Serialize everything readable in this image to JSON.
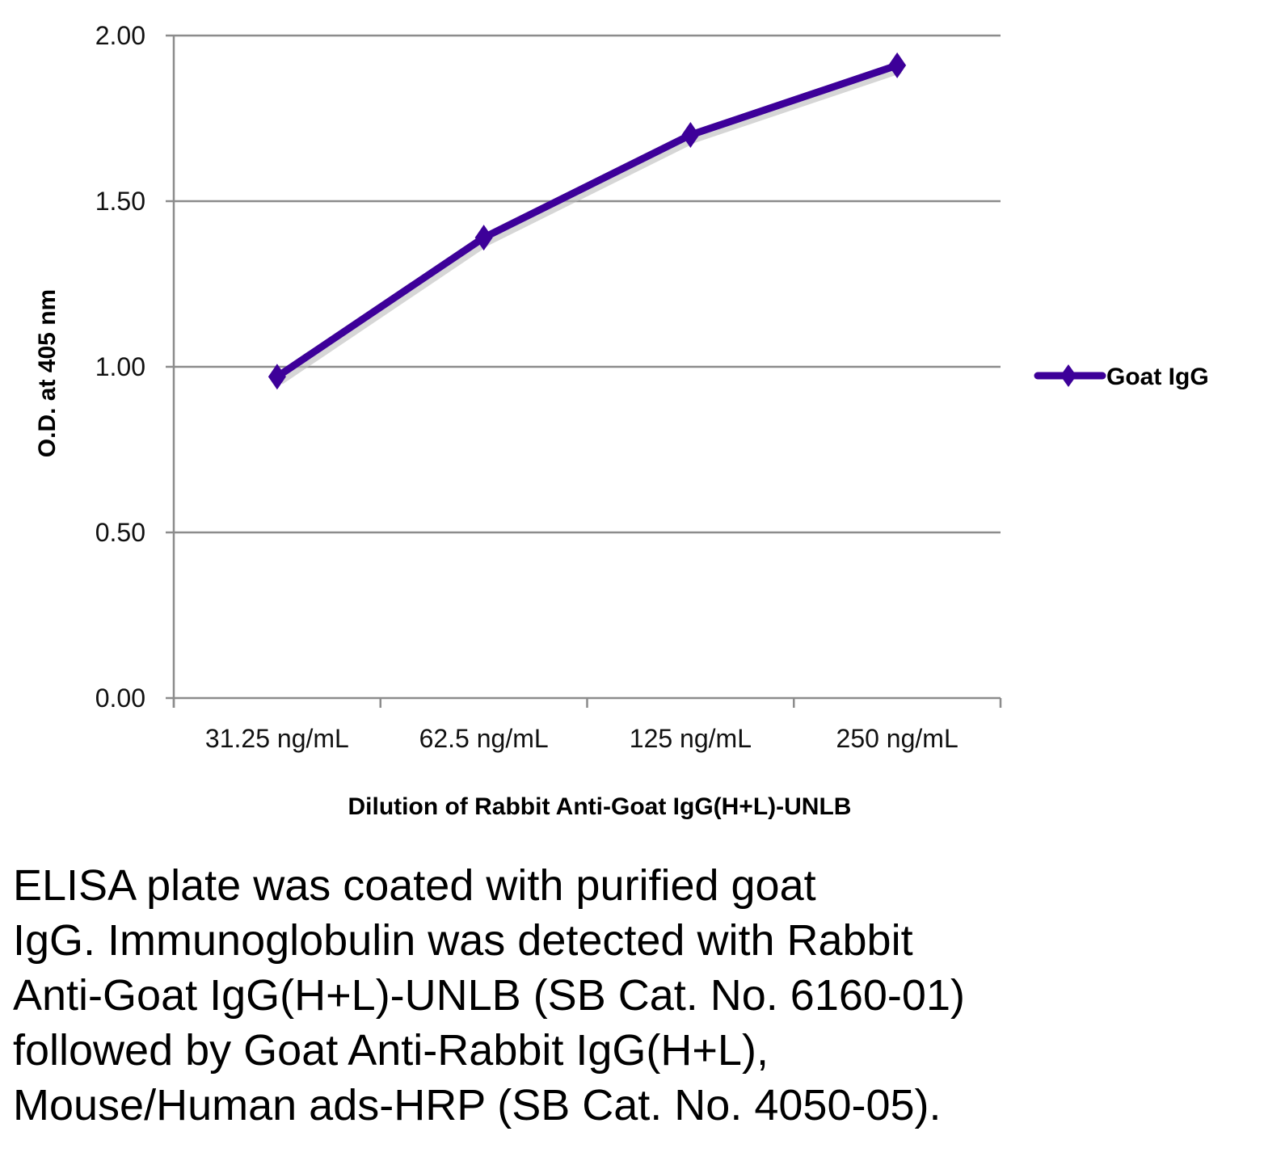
{
  "chart_data": {
    "type": "line",
    "title": "",
    "xlabel": "Dilution of Rabbit Anti-Goat IgG(H+L)-UNLB",
    "ylabel": "O.D. at 405 nm",
    "categories": [
      "31.25 ng/mL",
      "62.5 ng/mL",
      "125 ng/mL",
      "250 ng/mL"
    ],
    "series": [
      {
        "name": "Goat IgG",
        "values": [
          0.97,
          1.39,
          1.7,
          1.91
        ],
        "color": "#3d0099",
        "marker": "diamond"
      }
    ],
    "ylim": [
      0,
      2
    ],
    "yticks": [
      "0.00",
      "0.50",
      "1.00",
      "1.50",
      "2.00"
    ],
    "grid": true,
    "legend": "right"
  },
  "caption": [
    "ELISA plate was coated with purified goat",
    "IgG.  Immunoglobulin was detected with Rabbit",
    "Anti-Goat IgG(H+L)-UNLB (SB Cat. No. 6160-01)",
    "followed by Goat Anti-Rabbit IgG(H+L),",
    "Mouse/Human ads-HRP (SB Cat. No. 4050-05)."
  ]
}
